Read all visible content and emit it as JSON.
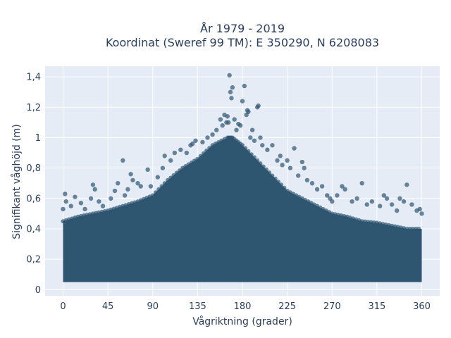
{
  "chart_data": {
    "type": "scatter",
    "title": [
      "År 1979 - 2019",
      "Koordinat (Sweref 99 TM): E 350290, N 6208083"
    ],
    "xlabel": "Vågriktning (grader)",
    "ylabel": "Signifikant våghöjd (m)",
    "xlim": [
      -18,
      378
    ],
    "ylim": [
      -0.04,
      1.47
    ],
    "xticks": [
      0,
      45,
      90,
      135,
      180,
      225,
      270,
      315,
      360
    ],
    "xtick_labels": [
      "0",
      "45",
      "90",
      "135",
      "180",
      "225",
      "270",
      "315",
      "360"
    ],
    "yticks": [
      0,
      0.2,
      0.4,
      0.6,
      0.8,
      1.0,
      1.2,
      1.4
    ],
    "ytick_labels": [
      "0",
      "0,2",
      "0,4",
      "0,6",
      "0,8",
      "1",
      "1,2",
      "1,4"
    ],
    "grid": true,
    "legend": "none",
    "colors": {
      "marker": "#2e5670",
      "plot_bg": "#e5ecf6",
      "text": "#2a3f5f"
    },
    "marker_opacity": 0.7,
    "envelope": [
      [
        0,
        0.45
      ],
      [
        15,
        0.48
      ],
      [
        30,
        0.5
      ],
      [
        45,
        0.52
      ],
      [
        60,
        0.55
      ],
      [
        75,
        0.58
      ],
      [
        90,
        0.62
      ],
      [
        105,
        0.72
      ],
      [
        120,
        0.8
      ],
      [
        135,
        0.86
      ],
      [
        150,
        0.95
      ],
      [
        165,
        1.0
      ],
      [
        170,
        1.0
      ],
      [
        180,
        0.95
      ],
      [
        195,
        0.85
      ],
      [
        210,
        0.75
      ],
      [
        225,
        0.65
      ],
      [
        240,
        0.6
      ],
      [
        255,
        0.55
      ],
      [
        270,
        0.5
      ],
      [
        285,
        0.48
      ],
      [
        300,
        0.45
      ],
      [
        315,
        0.44
      ],
      [
        330,
        0.42
      ],
      [
        345,
        0.4
      ],
      [
        360,
        0.4
      ]
    ],
    "dense_floor": 0.05,
    "outliers": [
      [
        0,
        0.53
      ],
      [
        2,
        0.63
      ],
      [
        3,
        0.58
      ],
      [
        8,
        0.55
      ],
      [
        12,
        0.61
      ],
      [
        18,
        0.57
      ],
      [
        22,
        0.53
      ],
      [
        28,
        0.6
      ],
      [
        30,
        0.69
      ],
      [
        32,
        0.66
      ],
      [
        36,
        0.58
      ],
      [
        40,
        0.55
      ],
      [
        48,
        0.6
      ],
      [
        52,
        0.65
      ],
      [
        55,
        0.7
      ],
      [
        60,
        0.85
      ],
      [
        62,
        0.62
      ],
      [
        65,
        0.66
      ],
      [
        68,
        0.76
      ],
      [
        70,
        0.72
      ],
      [
        75,
        0.7
      ],
      [
        78,
        0.68
      ],
      [
        85,
        0.79
      ],
      [
        88,
        0.68
      ],
      [
        95,
        0.74
      ],
      [
        100,
        0.8
      ],
      [
        102,
        0.88
      ],
      [
        108,
        0.85
      ],
      [
        112,
        0.9
      ],
      [
        118,
        0.92
      ],
      [
        124,
        0.9
      ],
      [
        128,
        0.95
      ],
      [
        130,
        0.96
      ],
      [
        133,
        0.98
      ],
      [
        140,
        0.97
      ],
      [
        145,
        1.0
      ],
      [
        150,
        1.02
      ],
      [
        154,
        1.05
      ],
      [
        158,
        1.12
      ],
      [
        160,
        1.08
      ],
      [
        162,
        1.15
      ],
      [
        164,
        1.1
      ],
      [
        165,
        1.14
      ],
      [
        166,
        1.1
      ],
      [
        167,
        1.41
      ],
      [
        168,
        1.3
      ],
      [
        169,
        1.26
      ],
      [
        170,
        1.33
      ],
      [
        172,
        1.12
      ],
      [
        174,
        1.05
      ],
      [
        176,
        1.09
      ],
      [
        178,
        1.08
      ],
      [
        180,
        1.24
      ],
      [
        182,
        1.34
      ],
      [
        184,
        1.15
      ],
      [
        185,
        1.18
      ],
      [
        186,
        1.17
      ],
      [
        188,
        1.0
      ],
      [
        190,
        1.05
      ],
      [
        192,
        0.98
      ],
      [
        195,
        1.2
      ],
      [
        196,
        1.21
      ],
      [
        198,
        1.0
      ],
      [
        200,
        0.95
      ],
      [
        205,
        0.92
      ],
      [
        210,
        0.95
      ],
      [
        215,
        0.85
      ],
      [
        218,
        0.88
      ],
      [
        220,
        0.82
      ],
      [
        225,
        0.85
      ],
      [
        228,
        0.8
      ],
      [
        232,
        0.93
      ],
      [
        236,
        0.75
      ],
      [
        240,
        0.84
      ],
      [
        242,
        0.8
      ],
      [
        245,
        0.72
      ],
      [
        250,
        0.7
      ],
      [
        255,
        0.66
      ],
      [
        260,
        0.68
      ],
      [
        265,
        0.62
      ],
      [
        268,
        0.6
      ],
      [
        270,
        0.58
      ],
      [
        275,
        0.62
      ],
      [
        280,
        0.68
      ],
      [
        283,
        0.66
      ],
      [
        290,
        0.58
      ],
      [
        295,
        0.6
      ],
      [
        300,
        0.7
      ],
      [
        305,
        0.56
      ],
      [
        310,
        0.58
      ],
      [
        318,
        0.55
      ],
      [
        322,
        0.62
      ],
      [
        325,
        0.6
      ],
      [
        330,
        0.56
      ],
      [
        335,
        0.52
      ],
      [
        338,
        0.6
      ],
      [
        342,
        0.58
      ],
      [
        345,
        0.69
      ],
      [
        350,
        0.56
      ],
      [
        355,
        0.52
      ],
      [
        358,
        0.53
      ],
      [
        360,
        0.5
      ]
    ]
  }
}
